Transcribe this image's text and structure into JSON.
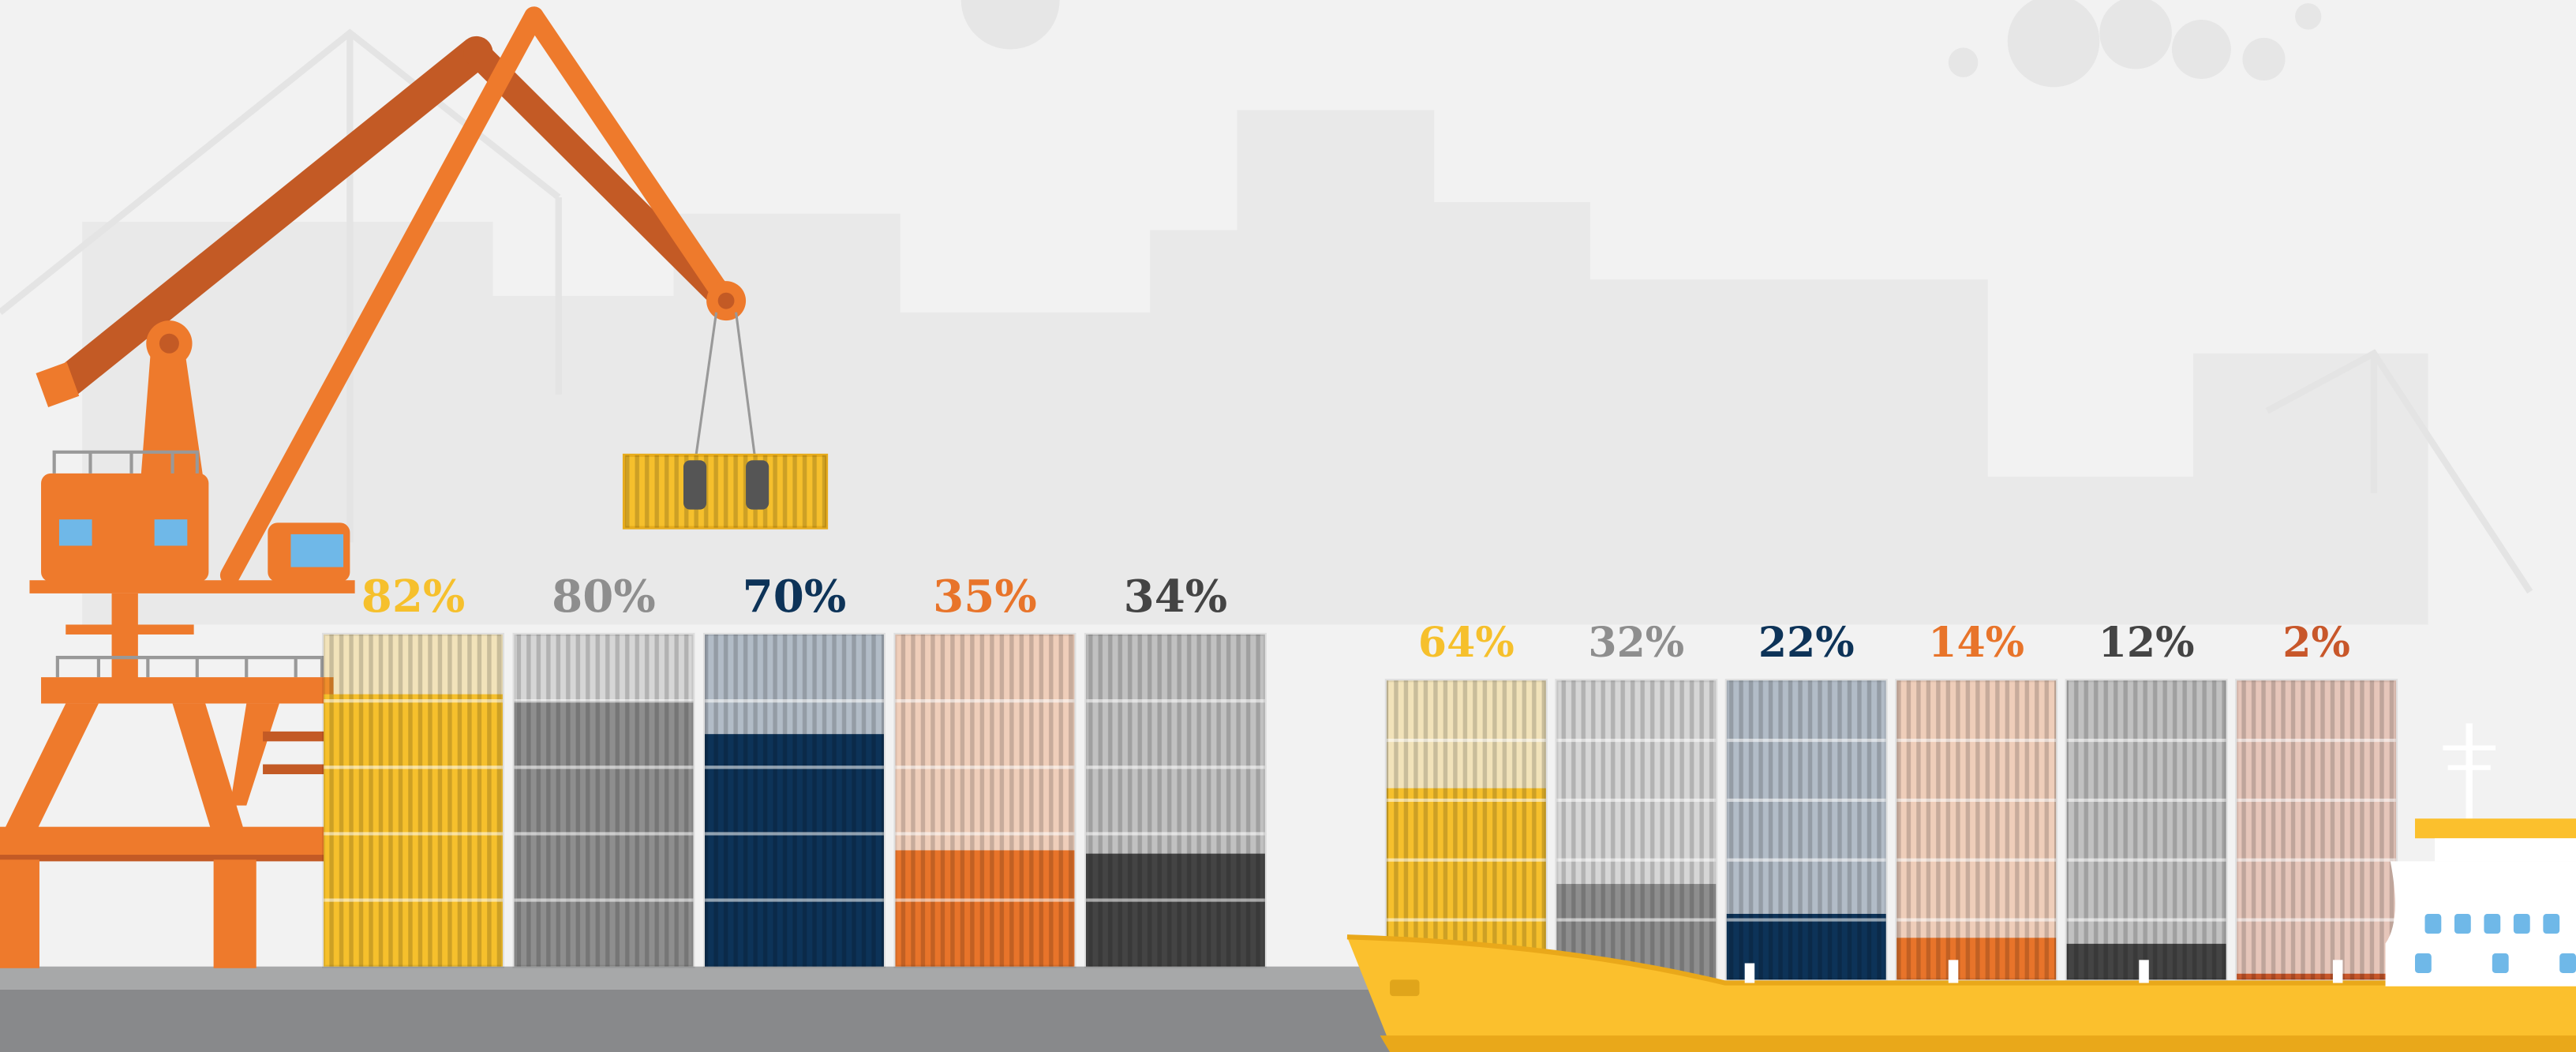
{
  "chart_data": [
    {
      "type": "bar",
      "values": [
        82,
        80,
        70,
        35,
        34
      ],
      "value_labels": [
        "82%",
        "80%",
        "70%",
        "35%",
        "34%"
      ],
      "colors": [
        "#f6c02c",
        "#8e8e8e",
        "#0d3358",
        "#e8742a",
        "#444444"
      ],
      "ylim": [
        0,
        100
      ]
    },
    {
      "type": "bar",
      "values": [
        64,
        32,
        22,
        14,
        12,
        2
      ],
      "value_labels": [
        "64%",
        "32%",
        "22%",
        "14%",
        "12%",
        "2%"
      ],
      "colors": [
        "#f6c02c",
        "#8e8e8e",
        "#0d3358",
        "#e8742a",
        "#444444",
        "#c8572a"
      ],
      "ylim": [
        0,
        100
      ]
    }
  ]
}
